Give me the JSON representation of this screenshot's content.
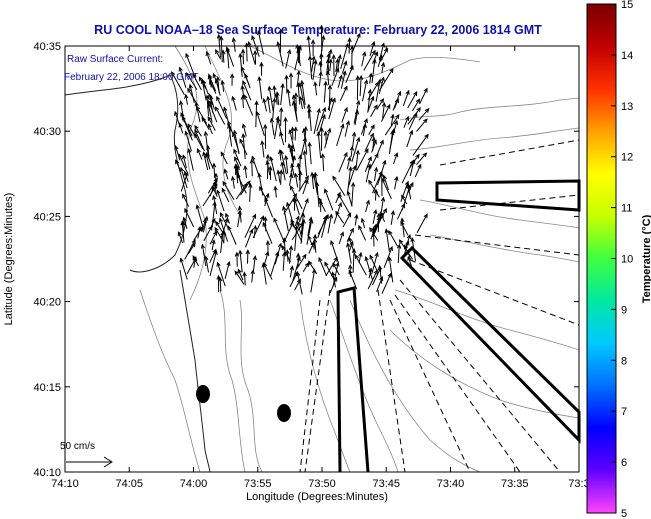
{
  "title": "RU COOL  NOAA–18  Sea Surface Temperature:  February 22, 2006 1814 GMT",
  "legend_lines": [
    "Raw Surface Current:",
    "February 22, 2006 18:00 GMT"
  ],
  "scale_label": "50 cm/s",
  "x_axis": {
    "label": "Longitude (Degrees:Minutes)",
    "ticks": [
      "74:10",
      "74:05",
      "74:00",
      "73:55",
      "73:50",
      "73:45",
      "73:40",
      "73:35",
      "73:3"
    ]
  },
  "y_axis": {
    "label": "Latitude (Degrees:Minutes)",
    "ticks": [
      "40:35",
      "40:30",
      "40:25",
      "40:20",
      "40:15",
      "40:10"
    ]
  },
  "colorbar": {
    "label": "Temperature (°C)",
    "ticks": [
      "15",
      "14",
      "13",
      "12",
      "11",
      "10",
      "9",
      "8",
      "7",
      "6",
      "5"
    ],
    "range": [
      5,
      15
    ],
    "colors": [
      "#ff44ff",
      "#6000ff",
      "#0000ff",
      "#0070ff",
      "#00c8ff",
      "#00e8a0",
      "#40ff40",
      "#c8ff00",
      "#ffff00",
      "#ffa000",
      "#ff3000",
      "#c00000",
      "#7a0000"
    ]
  }
}
